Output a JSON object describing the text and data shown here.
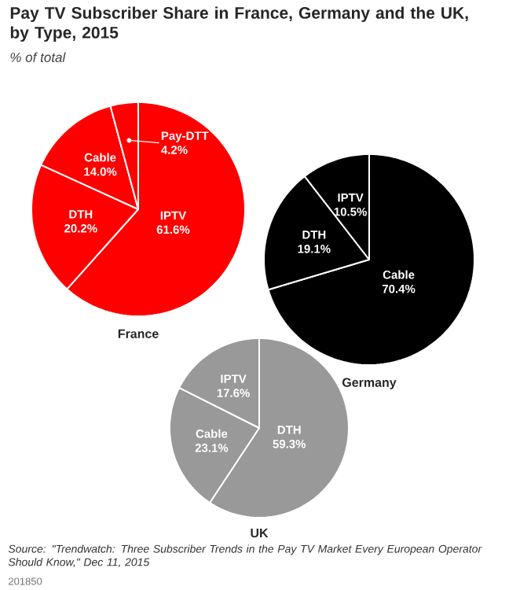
{
  "chart_data": [
    {
      "type": "other",
      "title": "Pay TV Subscriber Share in France, Germany and the UK, by Type, 2015",
      "subtitle": "% of total",
      "annotations": [
        "Source: \"Trendwatch: Three Subscriber Trends in the Pay TV Market Every European Operator Should Know,\" Dec 11, 2015",
        "201850"
      ]
    },
    {
      "type": "pie",
      "title": "France",
      "categories": [
        "IPTV",
        "DTH",
        "Cable",
        "Pay-DTT"
      ],
      "values": [
        61.6,
        20.2,
        14.0,
        4.2
      ],
      "value_labels": [
        "61.6%",
        "20.2%",
        "14.0%",
        "4.2%"
      ],
      "colors": [
        "#ff0000",
        "#ff0000",
        "#ff0000",
        "#ff0000"
      ]
    },
    {
      "type": "pie",
      "title": "Germany",
      "categories": [
        "Cable",
        "DTH",
        "IPTV"
      ],
      "values": [
        70.4,
        19.1,
        10.5
      ],
      "value_labels": [
        "70.4%",
        "19.1%",
        "10.5%"
      ],
      "colors": [
        "#000000",
        "#000000",
        "#000000"
      ]
    },
    {
      "type": "pie",
      "title": "UK",
      "categories": [
        "DTH",
        "Cable",
        "IPTV"
      ],
      "values": [
        59.3,
        23.1,
        17.6
      ],
      "value_labels": [
        "59.3%",
        "23.1%",
        "17.6%"
      ],
      "colors": [
        "#999999",
        "#999999",
        "#999999"
      ]
    }
  ]
}
